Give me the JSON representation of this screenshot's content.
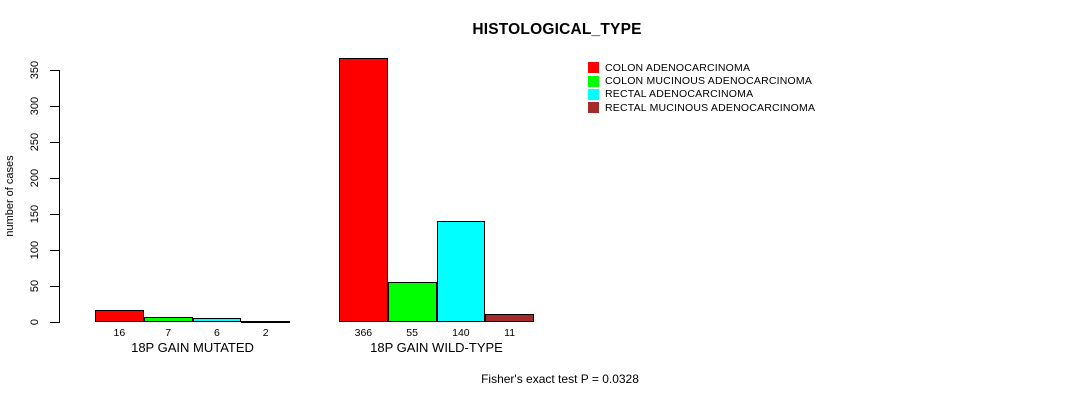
{
  "chart": {
    "title": "HISTOLOGICAL_TYPE",
    "ylabel": "number of cases",
    "footer": "Fisher's exact test P = 0.0328"
  },
  "chart_data": {
    "type": "bar",
    "title": "HISTOLOGICAL_TYPE",
    "xlabel": "",
    "ylabel": "number of cases",
    "ylim": [
      0,
      350
    ],
    "yticks": [
      0,
      50,
      100,
      150,
      200,
      250,
      300,
      350
    ],
    "grid": false,
    "legend_position": "top-right",
    "categories": [
      "18P GAIN MUTATED",
      "18P GAIN WILD-TYPE"
    ],
    "series": [
      {
        "name": "COLON ADENOCARCINOMA",
        "color": "#ff0000",
        "values": [
          16,
          366
        ]
      },
      {
        "name": "COLON MUCINOUS ADENOCARCINOMA",
        "color": "#00ff00",
        "values": [
          7,
          55
        ]
      },
      {
        "name": "RECTAL ADENOCARCINOMA",
        "color": "#00ffff",
        "values": [
          6,
          140
        ]
      },
      {
        "name": "RECTAL MUCINOUS ADENOCARCINOMA",
        "color": "#a52a2a",
        "values": [
          2,
          11
        ]
      }
    ],
    "bar_value_labels_shown": true,
    "annotation": "Fisher's exact test P = 0.0328"
  }
}
